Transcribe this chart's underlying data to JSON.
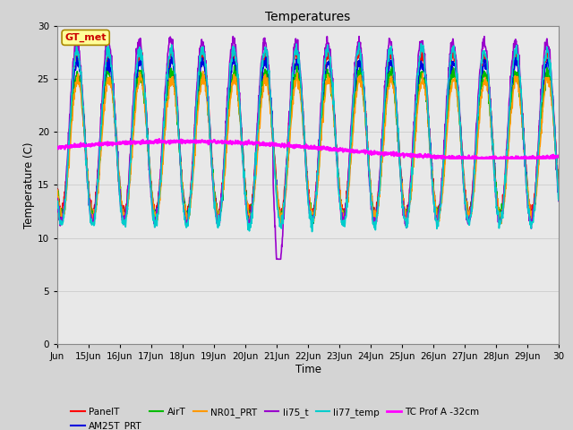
{
  "title": "Temperatures",
  "xlabel": "Time",
  "ylabel": "Temperature (C)",
  "xlim": [
    0,
    16
  ],
  "ylim": [
    0,
    30
  ],
  "yticks": [
    0,
    5,
    10,
    15,
    20,
    25,
    30
  ],
  "xtick_labels": [
    "Jun",
    "15Jun",
    "16Jun",
    "17Jun",
    "18Jun",
    "19Jun",
    "20Jun",
    "21Jun",
    "22Jun",
    "23Jun",
    "24Jun",
    "25Jun",
    "26Jun",
    "27Jun",
    "28Jun",
    "29Jun",
    "30"
  ],
  "fig_bg_color": "#d4d4d4",
  "plot_bg_color": "#e8e8e8",
  "series": {
    "PanelT": {
      "color": "#ff0000",
      "lw": 1.2
    },
    "AM25T_PRT": {
      "color": "#0000dd",
      "lw": 1.2
    },
    "AirT": {
      "color": "#00bb00",
      "lw": 1.2
    },
    "NR01_PRT": {
      "color": "#ff9900",
      "lw": 1.2
    },
    "li75_t": {
      "color": "#9900cc",
      "lw": 1.2
    },
    "li77_temp": {
      "color": "#00cccc",
      "lw": 1.2
    },
    "TC Prof A -32cm": {
      "color": "#ff00ff",
      "lw": 1.8
    }
  },
  "legend_box_text": "GT_met",
  "legend_box_color": "#ffff99",
  "legend_box_border": "#aa8800",
  "legend_box_text_color": "#cc0000",
  "base_mean": 19.0,
  "amplitude": 7.0,
  "phase_peak": 0.38,
  "n_days": 16,
  "pts_per_day": 96,
  "tc_base": 18.3,
  "tc_amp": 0.8
}
